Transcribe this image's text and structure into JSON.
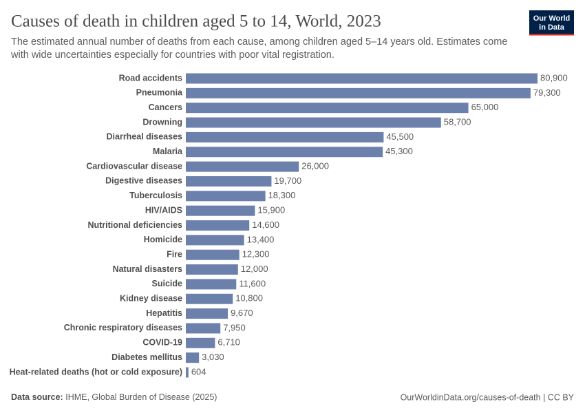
{
  "chart_data": {
    "type": "bar",
    "orientation": "horizontal",
    "title": "Causes of death in children aged 5 to 14, World, 2023",
    "subtitle": [
      "The estimated annual number of deaths from each cause, among children aged 5–14 years old. Estimates come",
      "with wide uncertainties especially for countries with poor vital registration."
    ],
    "categories": [
      "Road accidents",
      "Pneumonia",
      "Cancers",
      "Drowning",
      "Diarrheal diseases",
      "Malaria",
      "Cardiovascular disease",
      "Digestive diseases",
      "Tuberculosis",
      "HIV/AIDS",
      "Nutritional deficiencies",
      "Homicide",
      "Fire",
      "Natural disasters",
      "Suicide",
      "Kidney disease",
      "Hepatitis",
      "Chronic respiratory diseases",
      "COVID-19",
      "Diabetes mellitus",
      "Heat-related deaths (hot or cold exposure)"
    ],
    "values": [
      80900,
      79300,
      65000,
      58700,
      45500,
      45300,
      26000,
      19700,
      18300,
      15900,
      14600,
      13400,
      12300,
      12000,
      11600,
      10800,
      9670,
      7950,
      6710,
      3030,
      604
    ],
    "value_labels": [
      "80,900",
      "79,300",
      "65,000",
      "58,700",
      "45,500",
      "45,300",
      "26,000",
      "19,700",
      "18,300",
      "15,900",
      "14,600",
      "13,400",
      "12,300",
      "12,000",
      "11,600",
      "10,800",
      "9,670",
      "7,950",
      "6,710",
      "3,030",
      "604"
    ],
    "color": "#6b81ab",
    "logo": [
      "Our World",
      "in Data"
    ],
    "source_label": "Data source:",
    "source": "IHME, Global Burden of Disease (2025)",
    "credit": "OurWorldinData.org/causes-of-death | CC BY"
  }
}
